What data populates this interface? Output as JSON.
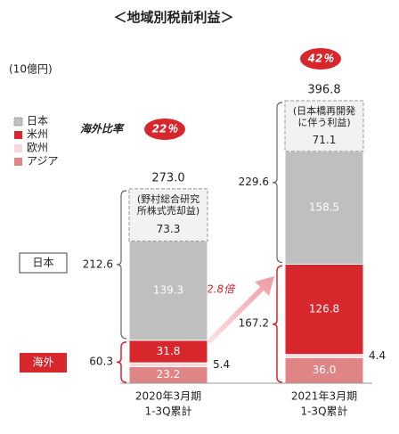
{
  "chart_data": {
    "type": "stacked_bar",
    "title": "＜地域別税前利益＞",
    "unit_label": "(10億円)",
    "categories": [
      [
        "2020年3月期",
        "1-3Q累計"
      ],
      [
        "2021年3月期",
        "1-3Q累計"
      ]
    ],
    "series": [
      {
        "name": "アジア",
        "color": "#e08585",
        "values": [
          23.2,
          36.0
        ],
        "value_labels": [
          "23.2",
          "36.0"
        ]
      },
      {
        "name": "欧州",
        "color": "#f8d7da",
        "values": [
          5.4,
          4.4
        ],
        "value_labels": [
          "5.4",
          "4.4"
        ]
      },
      {
        "name": "米州",
        "color": "#d7262c",
        "values": [
          31.8,
          126.8
        ],
        "value_labels": [
          "31.8",
          "126.8"
        ]
      },
      {
        "name": "日本",
        "color": "#bfbfbf",
        "values": [
          139.3,
          158.5
        ],
        "value_labels": [
          "139.3",
          "158.5"
        ]
      }
    ],
    "special": {
      "color": "#f2f2f2",
      "values": [
        73.3,
        71.1
      ],
      "value_labels": [
        "73.3",
        "71.1"
      ],
      "labels": [
        [
          "(野村総合研究",
          "所株式売却益)"
        ],
        [
          "(日本橋再開発",
          "に伴う利益)"
        ]
      ]
    },
    "totals": {
      "values": [
        273.0,
        396.8
      ],
      "value_labels": [
        "273.0",
        "396.8"
      ]
    },
    "japan_totals": {
      "label": "日本",
      "values": [
        212.6,
        229.6
      ]
    },
    "overseas_totals": {
      "label": "海外",
      "values": [
        60.3,
        167.2
      ]
    },
    "overseas_ratio": {
      "label": "海外比率",
      "values": [
        22,
        42
      ],
      "value_labels": [
        "22％",
        "42％"
      ]
    },
    "growth_label": "2.8倍"
  }
}
